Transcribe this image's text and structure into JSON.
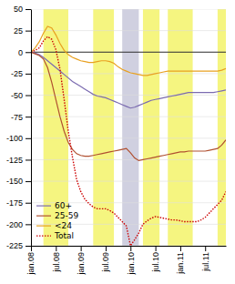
{
  "chart_data": {
    "type": "line",
    "categories": [
      "jan.08",
      null,
      null,
      null,
      null,
      null,
      "jul.08",
      null,
      null,
      null,
      null,
      null,
      "jan.09",
      null,
      null,
      null,
      null,
      null,
      "jul.09",
      null,
      null,
      null,
      null,
      null,
      "jan.10",
      null,
      null,
      null,
      null,
      null,
      "jul.10",
      null,
      null,
      null,
      null,
      null,
      "jan.11",
      null,
      null,
      null,
      null,
      null,
      "jul.11",
      null,
      null,
      null,
      null,
      null
    ],
    "series": [
      {
        "name": "60+",
        "color": "#7b6bb0",
        "line_style": "solid",
        "values": [
          0,
          -1,
          -3,
          -6,
          -10,
          -14,
          -18,
          -22,
          -26,
          -30,
          -34,
          -37,
          -40,
          -43,
          -46,
          -49,
          -51,
          -52,
          -53,
          -55,
          -57,
          -59,
          -61,
          -63,
          -65,
          -64,
          -62,
          -60,
          -58,
          -56,
          -55,
          -54,
          -53,
          -52,
          -51,
          -50,
          -49,
          -48,
          -47,
          -47,
          -47,
          -47,
          -47,
          -47,
          -47,
          -46,
          -45,
          -44
        ]
      },
      {
        "name": "25-59",
        "color": "#b05030",
        "line_style": "solid",
        "values": [
          0,
          -2,
          -4,
          -8,
          -18,
          -35,
          -55,
          -75,
          -92,
          -105,
          -113,
          -118,
          -120,
          -121,
          -121,
          -120,
          -119,
          -118,
          -117,
          -116,
          -115,
          -114,
          -113,
          -112,
          -117,
          -123,
          -126,
          -125,
          -124,
          -123,
          -122,
          -121,
          -120,
          -119,
          -118,
          -117,
          -116,
          -116,
          -115,
          -115,
          -115,
          -115,
          -115,
          -114,
          -113,
          -112,
          -108,
          -102
        ]
      },
      {
        "name": "<24",
        "color": "#e8a020",
        "line_style": "solid",
        "values": [
          0,
          5,
          12,
          22,
          30,
          28,
          20,
          10,
          2,
          -3,
          -6,
          -8,
          -10,
          -11,
          -12,
          -12,
          -11,
          -10,
          -10,
          -11,
          -13,
          -17,
          -20,
          -22,
          -24,
          -25,
          -26,
          -27,
          -27,
          -26,
          -25,
          -24,
          -23,
          -22,
          -22,
          -22,
          -22,
          -22,
          -22,
          -22,
          -22,
          -22,
          -22,
          -22,
          -22,
          -22,
          -21,
          -19
        ]
      },
      {
        "name": "Total",
        "color": "#cc0000",
        "line_style": "dotted",
        "values": [
          0,
          2,
          5,
          13,
          18,
          15,
          3,
          -20,
          -55,
          -92,
          -122,
          -148,
          -162,
          -171,
          -176,
          -180,
          -182,
          -182,
          -182,
          -184,
          -187,
          -192,
          -197,
          -202,
          -225,
          -218,
          -210,
          -200,
          -196,
          -193,
          -191,
          -192,
          -193,
          -194,
          -195,
          -195,
          -196,
          -197,
          -197,
          -197,
          -197,
          -195,
          -192,
          -187,
          -182,
          -177,
          -172,
          -162
        ]
      }
    ],
    "bands": [
      {
        "start": 3,
        "end": 9,
        "color": "#f5f580"
      },
      {
        "start": 15,
        "end": 20,
        "color": "#f5f580"
      },
      {
        "start": 27,
        "end": 31,
        "color": "#f5f580"
      },
      {
        "start": 33,
        "end": 39,
        "color": "#f5f580"
      },
      {
        "start": 45,
        "end": 48,
        "color": "#f5f580"
      },
      {
        "start": 22,
        "end": 26,
        "color": "#d0d0e0"
      }
    ],
    "hline": 0,
    "ylim": [
      -225,
      50
    ],
    "yticks": [
      -225,
      -200,
      -175,
      -150,
      -125,
      -100,
      -75,
      -50,
      -25,
      0,
      25,
      50
    ],
    "grid": true,
    "legend": "lower left"
  }
}
